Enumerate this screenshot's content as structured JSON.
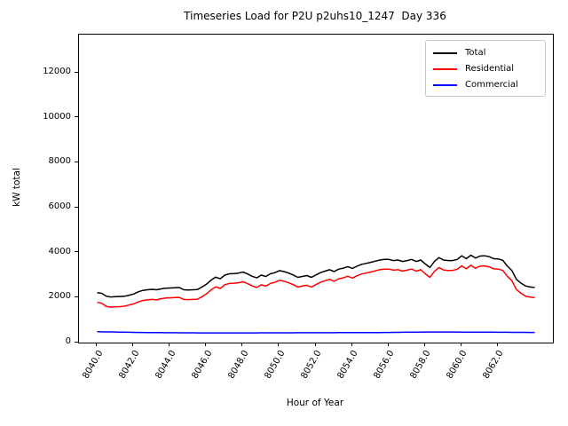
{
  "title": "Timeseries Load for P2U p2uhs10_1247  Day 336",
  "axes": {
    "xlabel": "Hour of Year",
    "ylabel": "kW total",
    "x_ticks": [
      "8040.0",
      "8042.0",
      "8044.0",
      "8046.0",
      "8048.0",
      "8050.0",
      "8052.0",
      "8054.0",
      "8056.0",
      "8058.0",
      "8060.0",
      "8062.0"
    ],
    "y_ticks": [
      "0",
      "2000",
      "4000",
      "6000",
      "8000",
      "10000",
      "12000"
    ]
  },
  "legend": {
    "items": [
      {
        "label": "Total",
        "color": "#000000"
      },
      {
        "label": "Residential",
        "color": "#ff0000"
      },
      {
        "label": "Commercial",
        "color": "#0000ff"
      }
    ]
  },
  "chart_data": {
    "type": "line",
    "title": "Timeseries Load for P2U p2uhs10_1247  Day 336",
    "xlabel": "Hour of Year",
    "ylabel": "kW total",
    "xlim": [
      8039.0,
      8065.0
    ],
    "ylim": [
      0,
      13700
    ],
    "grid": false,
    "legend_position": "upper right",
    "x_start": 8040.0,
    "x_step": 0.25,
    "series": [
      {
        "name": "Total",
        "color": "#000000",
        "values": [
          2220,
          2190,
          2060,
          2030,
          2040,
          2050,
          2060,
          2110,
          2160,
          2260,
          2320,
          2350,
          2370,
          2350,
          2390,
          2420,
          2430,
          2440,
          2450,
          2350,
          2340,
          2350,
          2360,
          2470,
          2600,
          2780,
          2910,
          2840,
          3000,
          3060,
          3070,
          3090,
          3140,
          3050,
          2950,
          2880,
          3000,
          2940,
          3060,
          3110,
          3200,
          3160,
          3090,
          3010,
          2900,
          2940,
          2980,
          2900,
          3010,
          3110,
          3180,
          3240,
          3160,
          3270,
          3310,
          3380,
          3300,
          3400,
          3480,
          3520,
          3570,
          3620,
          3670,
          3700,
          3700,
          3650,
          3670,
          3610,
          3650,
          3700,
          3610,
          3670,
          3500,
          3340,
          3610,
          3780,
          3670,
          3650,
          3650,
          3700,
          3860,
          3730,
          3890,
          3760,
          3850,
          3860,
          3820,
          3730,
          3720,
          3660,
          3400,
          3200,
          2810,
          2640,
          2520,
          2470,
          2450
        ]
      },
      {
        "name": "Residential",
        "color": "#ff0000",
        "values": [
          1790,
          1750,
          1610,
          1580,
          1590,
          1600,
          1620,
          1670,
          1720,
          1810,
          1870,
          1900,
          1920,
          1900,
          1950,
          1980,
          1990,
          2000,
          2010,
          1920,
          1910,
          1920,
          1930,
          2040,
          2170,
          2350,
          2480,
          2410,
          2570,
          2630,
          2640,
          2660,
          2710,
          2620,
          2520,
          2450,
          2570,
          2510,
          2630,
          2680,
          2770,
          2730,
          2660,
          2580,
          2470,
          2510,
          2550,
          2470,
          2580,
          2680,
          2750,
          2810,
          2730,
          2840,
          2880,
          2950,
          2870,
          2970,
          3050,
          3090,
          3140,
          3190,
          3240,
          3270,
          3270,
          3220,
          3240,
          3180,
          3220,
          3270,
          3180,
          3240,
          3060,
          2900,
          3170,
          3340,
          3230,
          3210,
          3210,
          3260,
          3410,
          3280,
          3440,
          3310,
          3400,
          3410,
          3370,
          3280,
          3270,
          3210,
          2950,
          2750,
          2360,
          2190,
          2070,
          2020,
          2000
        ]
      },
      {
        "name": "Commercial",
        "color": "#0000ff",
        "values": [
          480,
          478,
          475,
          472,
          468,
          465,
          462,
          458,
          455,
          452,
          450,
          448,
          445,
          443,
          441,
          440,
          438,
          437,
          436,
          435,
          434,
          433,
          432,
          432,
          431,
          430,
          430,
          430,
          430,
          430,
          430,
          430,
          431,
          431,
          432,
          432,
          433,
          433,
          434,
          434,
          435,
          435,
          436,
          436,
          437,
          437,
          438,
          438,
          438,
          439,
          439,
          440,
          440,
          441,
          441,
          442,
          442,
          443,
          444,
          445,
          446,
          447,
          448,
          450,
          452,
          454,
          456,
          458,
          460,
          462,
          464,
          466,
          468,
          469,
          470,
          470,
          470,
          470,
          469,
          468,
          467,
          466,
          465,
          464,
          463,
          462,
          461,
          460,
          459,
          458,
          457,
          456,
          455,
          454,
          453,
          452,
          451
        ]
      }
    ]
  }
}
